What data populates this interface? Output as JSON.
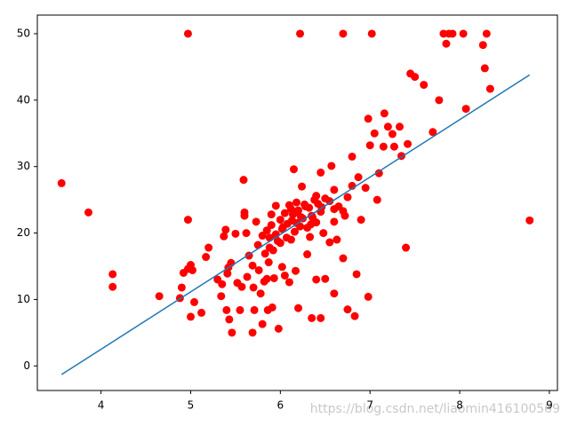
{
  "chart_data": {
    "type": "scatter",
    "xlim": [
      3.29,
      9.09
    ],
    "ylim": [
      -3.7,
      52.8
    ],
    "xticks": [
      4,
      5,
      6,
      7,
      8,
      9
    ],
    "yticks": [
      0,
      10,
      20,
      30,
      40,
      50
    ],
    "series": [
      {
        "type": "scatter",
        "color": "#ff0000",
        "x": [
          3.56,
          3.86,
          4.13,
          4.13,
          4.65,
          4.88,
          4.9,
          4.92,
          4.97,
          4.97,
          4.97,
          5.0,
          5.04,
          5.0,
          5.02,
          5.12,
          5.17,
          5.2,
          5.3,
          5.34,
          5.35,
          5.37,
          5.39,
          5.4,
          5.41,
          5.42,
          5.43,
          5.45,
          5.46,
          5.5,
          5.52,
          5.55,
          5.57,
          5.6,
          5.6,
          5.59,
          5.62,
          5.63,
          5.65,
          5.69,
          5.69,
          5.7,
          5.71,
          5.73,
          5.76,
          5.78,
          5.8,
          5.82,
          5.85,
          5.86,
          5.87,
          5.88,
          5.9,
          5.91,
          5.93,
          5.95,
          5.98,
          6.0,
          6.02,
          6.05,
          6.1,
          6.12,
          6.15,
          6.17,
          6.18,
          6.2,
          6.22,
          6.24,
          6.3,
          6.33,
          6.35,
          6.36,
          6.4,
          6.45,
          6.45,
          6.5,
          6.55,
          6.57,
          6.6,
          6.6,
          6.63,
          6.7,
          6.7,
          6.72,
          6.75,
          6.8,
          6.8,
          6.83,
          6.85,
          6.87,
          6.9,
          6.95,
          6.98,
          6.98,
          7.0,
          7.02,
          7.05,
          7.08,
          7.1,
          7.15,
          7.16,
          7.2,
          7.25,
          7.27,
          7.33,
          7.35,
          7.4,
          7.42,
          7.45,
          7.5,
          7.6,
          7.7,
          7.77,
          7.82,
          7.85,
          7.88,
          7.92,
          8.04,
          8.07,
          8.26,
          8.28,
          8.3,
          8.34,
          8.78,
          5.75,
          5.8,
          5.85,
          5.9,
          5.95,
          6.0,
          6.02,
          6.05,
          6.08,
          6.1,
          6.12,
          6.14,
          6.16,
          6.18,
          6.2,
          6.22,
          6.25,
          6.28,
          6.3,
          6.32,
          6.35,
          6.38,
          6.4,
          6.42,
          6.45,
          6.48,
          6.5,
          6.55,
          6.6,
          5.92,
          5.97,
          6.03,
          6.07,
          6.13,
          6.19,
          6.23,
          6.27,
          6.34,
          6.4,
          6.46,
          5.83,
          5.88,
          6.6,
          6.65,
          6.7,
          6.75
        ],
        "values": [
          27.5,
          23.1,
          13.8,
          11.9,
          10.5,
          10.2,
          11.8,
          14,
          14.6,
          50,
          22,
          7.4,
          9.6,
          15.2,
          14.4,
          8.0,
          16.4,
          17.8,
          13,
          10.5,
          12.3,
          19.5,
          20.5,
          8.4,
          13.9,
          14.8,
          7.0,
          15.5,
          5.0,
          19.9,
          12.5,
          8.4,
          11.9,
          23.1,
          22.6,
          28,
          20,
          13.4,
          16.6,
          5.0,
          15.1,
          11.8,
          8.4,
          21.7,
          14.4,
          10.9,
          6.3,
          12.7,
          13.1,
          8.4,
          15.6,
          19.3,
          22.8,
          8.8,
          13.2,
          24.1,
          5.6,
          18.5,
          14.9,
          13.6,
          12.6,
          23.6,
          29.6,
          14.3,
          21.5,
          8.7,
          50,
          27.0,
          16.8,
          19.4,
          7.2,
          22.3,
          13.0,
          7.2,
          29.1,
          13.1,
          18.6,
          30.1,
          10.9,
          26.5,
          19.0,
          50,
          16.2,
          22.6,
          8.5,
          27.1,
          31.5,
          7.5,
          13.8,
          28.4,
          22.0,
          26.8,
          37.2,
          10.4,
          33.2,
          50,
          35,
          25,
          29,
          33,
          38,
          36,
          34.9,
          33,
          36,
          31.6,
          17.8,
          33.4,
          44,
          43.5,
          42.3,
          35.2,
          40,
          50,
          48.5,
          50,
          50,
          50,
          38.7,
          48.3,
          44.8,
          50,
          41.7,
          21.9,
          18.2,
          19.6,
          20.4,
          21.2,
          19.8,
          22.0,
          20.6,
          23.0,
          21.4,
          24.2,
          19.0,
          22.8,
          20.2,
          24.6,
          23.4,
          21.0,
          22.2,
          24.0,
          20.8,
          23.8,
          22.6,
          25.0,
          21.6,
          24.4,
          23.2,
          20.0,
          25.2,
          24.8,
          23.6,
          17.4,
          18.8,
          20.9,
          19.3,
          21.9,
          23.1,
          22.4,
          24.3,
          21.3,
          25.6,
          23.9,
          16.9,
          17.8,
          21.7,
          24.0,
          23.3,
          25.4
        ]
      },
      {
        "type": "line",
        "color": "#1f77b4",
        "x": [
          3.56,
          8.78
        ],
        "values": [
          -1.3,
          43.8
        ]
      }
    ]
  },
  "watermark": "https://blog.csdn.net/liaomin416100569"
}
